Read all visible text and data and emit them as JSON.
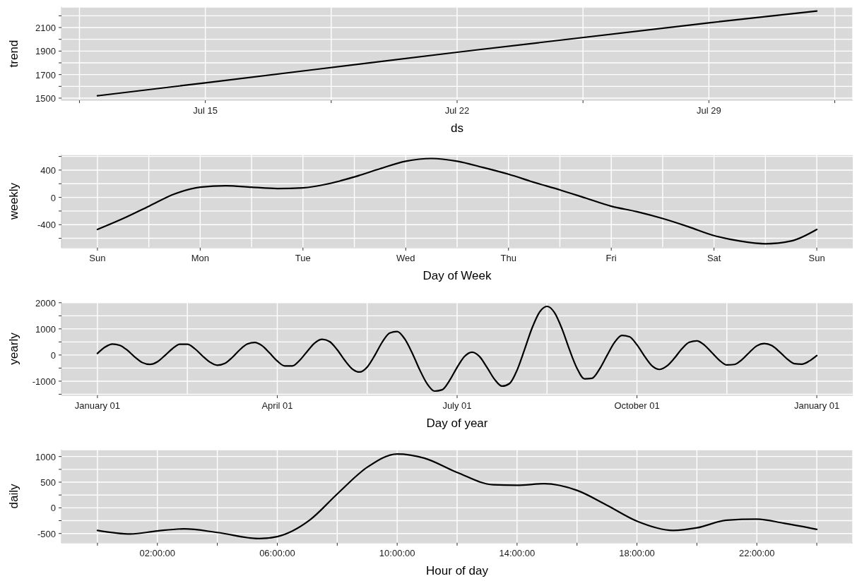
{
  "chart_data": [
    {
      "type": "line",
      "xlabel": "ds",
      "ylabel": "trend",
      "color": "#000000",
      "x": [
        "--07-12",
        "--07-15",
        "--07-22",
        "--07-29",
        "--08-01"
      ],
      "values": [
        1520,
        1630,
        1890,
        2140,
        2240
      ],
      "xlim": [
        "--07-11",
        "--08-02"
      ],
      "xticks": [
        {
          "value": "--07-11T12:00",
          "label": null
        },
        {
          "value": "--07-15",
          "label": "Jul 15"
        },
        {
          "value": "--07-18T12:00",
          "label": null
        },
        {
          "value": "--07-22",
          "label": "Jul 22"
        },
        {
          "value": "--07-25T12:00",
          "label": null
        },
        {
          "value": "--07-29",
          "label": "Jul 29"
        },
        {
          "value": "--08-01T12:00",
          "label": null
        }
      ],
      "ylim": [
        1482,
        2274
      ],
      "yticks": [
        1500,
        {
          "value": 1600,
          "label": null
        },
        1700,
        {
          "value": 1800,
          "label": null
        },
        1900,
        {
          "value": 2000,
          "label": null
        },
        2100,
        {
          "value": 2200,
          "label": null
        }
      ],
      "grid": true
    },
    {
      "type": "line",
      "xlabel": "Day of Week",
      "ylabel": "weekly",
      "color": "#000000",
      "categories": [
        "Sun",
        null,
        null,
        null,
        "Mon",
        null,
        null,
        null,
        "Tue",
        null,
        null,
        null,
        "Wed",
        null,
        null,
        null,
        "Thu",
        null,
        null,
        null,
        "Fri",
        null,
        null,
        null,
        "Sat",
        null,
        null,
        null,
        "Sun"
      ],
      "values": [
        -470,
        -310,
        -130,
        50,
        150,
        170,
        150,
        130,
        140,
        200,
        300,
        420,
        530,
        570,
        530,
        440,
        340,
        220,
        110,
        -10,
        -130,
        -210,
        -310,
        -430,
        -560,
        -640,
        -680,
        -640,
        -470
      ],
      "ylim": [
        -739,
        627
      ],
      "yticks": [
        {
          "value": -600,
          "label": null
        },
        -400,
        {
          "value": -200,
          "label": null
        },
        0,
        {
          "value": 200,
          "label": null
        },
        400,
        {
          "value": 600,
          "label": null
        }
      ],
      "grid": true
    },
    {
      "type": "line",
      "xlabel": "Day of year",
      "ylabel": "yearly",
      "color": "#000000",
      "categories": [
        "January 01",
        null,
        null,
        null,
        null,
        null,
        null,
        null,
        null,
        null,
        null,
        null,
        null,
        null,
        null,
        null,
        null,
        null,
        null,
        null,
        null,
        null,
        null,
        null,
        "April 01",
        null,
        null,
        null,
        null,
        null,
        null,
        null,
        null,
        null,
        null,
        null,
        null,
        null,
        null,
        null,
        null,
        null,
        null,
        null,
        null,
        null,
        null,
        null,
        "July 01",
        null,
        null,
        null,
        null,
        null,
        null,
        null,
        null,
        null,
        null,
        null,
        null,
        null,
        null,
        null,
        null,
        null,
        null,
        null,
        null,
        null,
        null,
        null,
        "October 01",
        null,
        null,
        null,
        null,
        null,
        null,
        null,
        null,
        null,
        null,
        null,
        null,
        null,
        null,
        null,
        null,
        null,
        null,
        null,
        null,
        null,
        null,
        null,
        "January 01"
      ],
      "values": [
        60,
        300,
        420,
        370,
        180,
        -80,
        -290,
        -360,
        -260,
        -20,
        240,
        410,
        410,
        240,
        -30,
        -270,
        -390,
        -320,
        -90,
        200,
        420,
        480,
        350,
        70,
        -230,
        -420,
        -420,
        -200,
        140,
        460,
        600,
        510,
        200,
        -200,
        -530,
        -650,
        -460,
        -20,
        490,
        840,
        900,
        620,
        80,
        -560,
        -1100,
        -1380,
        -1330,
        -970,
        -470,
        -50,
        110,
        -60,
        -480,
        -930,
        -1190,
        -1090,
        -580,
        210,
        1030,
        1640,
        1860,
        1620,
        1000,
        200,
        -510,
        -910,
        -890,
        -540,
        -20,
        480,
        750,
        700,
        390,
        -40,
        -410,
        -550,
        -420,
        -120,
        240,
        490,
        540,
        380,
        90,
        -200,
        -380,
        -360,
        -180,
        100,
        350,
        440,
        360,
        130,
        -140,
        -330,
        -350,
        -230,
        -20
      ],
      "ylim": [
        -1542,
        2022
      ],
      "yticks": [
        {
          "value": -1500,
          "label": null
        },
        -1000,
        {
          "value": -500,
          "label": null
        },
        0,
        {
          "value": 500,
          "label": null
        },
        1000,
        {
          "value": 1500,
          "label": null
        },
        2000
      ],
      "grid": true
    },
    {
      "type": "line",
      "xlabel": "Hour of day",
      "ylabel": "daily",
      "color": "#000000",
      "x": [
        0,
        1.1,
        2,
        2.9,
        4,
        5.4,
        6,
        7.1,
        8,
        9,
        10,
        10.9,
        12,
        13.2,
        14,
        14.9,
        16,
        17,
        18,
        19.2,
        20,
        21,
        22,
        22.9,
        24
      ],
      "values": [
        -440,
        -510,
        -450,
        -410,
        -480,
        -600,
        -560,
        -230,
        270,
        790,
        1050,
        970,
        690,
        450,
        440,
        470,
        340,
        50,
        -260,
        -440,
        -390,
        -240,
        -220,
        -300,
        -420
      ],
      "xlim": [
        -1.2,
        25.2
      ],
      "xticks": [
        {
          "value": 0,
          "label": null
        },
        {
          "value": 2,
          "label": "02:00:00"
        },
        {
          "value": 4,
          "label": null
        },
        {
          "value": 6,
          "label": "06:00:00"
        },
        {
          "value": 8,
          "label": null
        },
        {
          "value": 10,
          "label": "10:00:00"
        },
        {
          "value": 12,
          "label": null
        },
        {
          "value": 14,
          "label": "14:00:00"
        },
        {
          "value": 16,
          "label": null
        },
        {
          "value": 18,
          "label": "18:00:00"
        },
        {
          "value": 20,
          "label": null
        },
        {
          "value": 22,
          "label": "22:00:00"
        },
        {
          "value": 24,
          "label": null
        }
      ],
      "ylim": [
        -683,
        1133
      ],
      "yticks": [
        -500,
        {
          "value": -250,
          "label": null
        },
        0,
        {
          "value": 250,
          "label": null
        },
        500,
        {
          "value": 750,
          "label": null
        },
        1000
      ],
      "grid": true
    }
  ]
}
